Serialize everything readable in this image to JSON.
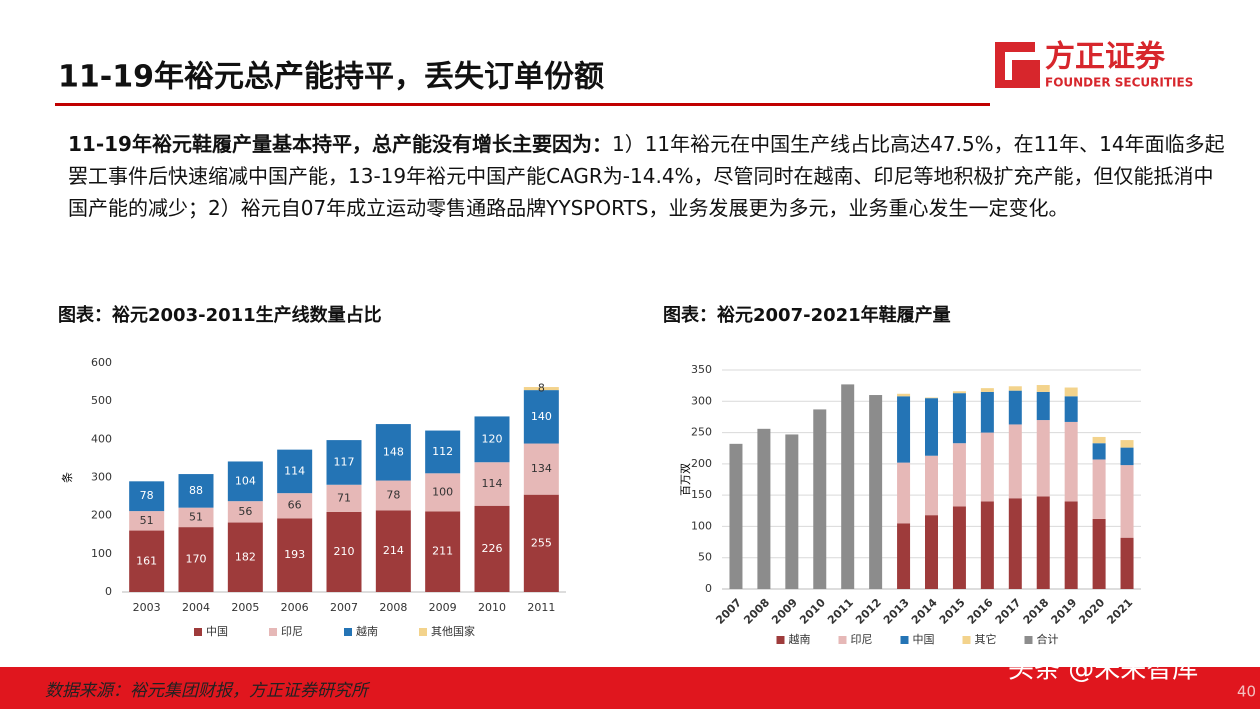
{
  "header": {
    "title": "11-19年裕元总产能持平，丢失订单份额",
    "logo_cn": "方正证券",
    "logo_en": "FOUNDER SECURITIES"
  },
  "body": {
    "bold": "11-19年裕元鞋履产量基本持平，总产能没有增长主要因为：",
    "text": "1）11年裕元在中国生产线占比高达47.5%，在11年、14年面临多起罢工事件后快速缩减中国产能，13-19年裕元中国产能CAGR为-14.4%，尽管同时在越南、印尼等地积极扩充产能，但仅能抵消中国产能的减少；2）裕元自07年成立运动零售通路品牌YYSPORTS，业务发展更为多元，业务重心发生一定变化。"
  },
  "chart_data": [
    {
      "type": "stacked_bar",
      "title": "图表：裕元2003-2011生产线数量占比",
      "y_label": "条",
      "categories": [
        "2003",
        "2004",
        "2005",
        "2006",
        "2007",
        "2008",
        "2009",
        "2010",
        "2011"
      ],
      "series": [
        {
          "name": "中国",
          "color": "#9e3b3b",
          "values": [
            161,
            170,
            182,
            193,
            210,
            214,
            211,
            226,
            255
          ]
        },
        {
          "name": "印尼",
          "color": "#e6b8b7",
          "values": [
            51,
            51,
            56,
            66,
            71,
            78,
            100,
            114,
            134
          ]
        },
        {
          "name": "越南",
          "color": "#2474b5",
          "values": [
            78,
            88,
            104,
            114,
            117,
            148,
            112,
            120,
            140
          ]
        },
        {
          "name": "其他国家",
          "color": "#f3d38c",
          "values": [
            null,
            null,
            null,
            null,
            null,
            null,
            null,
            null,
            8
          ]
        }
      ],
      "ylim": [
        0,
        600
      ],
      "yticks": [
        0,
        100,
        200,
        300,
        400,
        500,
        600
      ],
      "grid": false,
      "data_labels": true
    },
    {
      "type": "stacked_bar",
      "title": "图表：裕元2007-2021年鞋履产量",
      "y_label": "百万双",
      "categories": [
        "2007",
        "2008",
        "2009",
        "2010",
        "2011",
        "2012",
        "2013",
        "2014",
        "2015",
        "2016",
        "2017",
        "2018",
        "2019",
        "2020",
        "2021"
      ],
      "series": [
        {
          "name": "越南",
          "color": "#9e3b3b",
          "values": [
            null,
            null,
            null,
            null,
            null,
            null,
            105,
            118,
            132,
            140,
            145,
            148,
            140,
            112,
            82
          ]
        },
        {
          "name": "印尼",
          "color": "#e6b8b7",
          "values": [
            null,
            null,
            null,
            null,
            null,
            null,
            97,
            95,
            101,
            110,
            118,
            122,
            127,
            95,
            116
          ]
        },
        {
          "name": "中国",
          "color": "#2474b5",
          "values": [
            null,
            null,
            null,
            null,
            null,
            null,
            106,
            92,
            80,
            65,
            54,
            45,
            41,
            26,
            28
          ]
        },
        {
          "name": "其它",
          "color": "#f3d38c",
          "values": [
            null,
            null,
            null,
            null,
            null,
            null,
            4,
            1,
            3,
            6,
            7,
            11,
            14,
            10,
            12
          ]
        },
        {
          "name": "合计",
          "color": "#8c8c8c",
          "values": [
            232,
            256,
            247,
            287,
            327,
            310,
            null,
            null,
            null,
            null,
            null,
            null,
            null,
            null,
            null
          ]
        }
      ],
      "ylim": [
        0,
        350
      ],
      "yticks": [
        0,
        50,
        100,
        150,
        200,
        250,
        300,
        350
      ],
      "grid": true,
      "data_labels": false
    }
  ],
  "footer": {
    "source": "数据来源：裕元集团财报，方正证券研究所",
    "watermark": "头条 @未来智库",
    "page": "40"
  }
}
